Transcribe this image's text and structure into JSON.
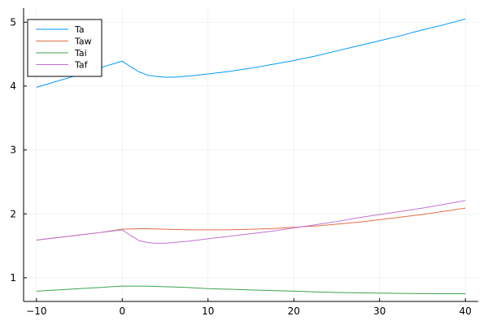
{
  "chart_data": {
    "type": "line",
    "title": "",
    "xlabel": "",
    "ylabel": "",
    "xlim": [
      -11.5,
      41.5
    ],
    "ylim": [
      0.63,
      5.22
    ],
    "xticks": [
      -10,
      0,
      10,
      20,
      30,
      40
    ],
    "yticks": [
      1,
      2,
      3,
      4,
      5
    ],
    "xtick_labels": [
      "−10",
      "0",
      "10",
      "20",
      "30",
      "40"
    ],
    "ytick_labels": [
      "1",
      "2",
      "3",
      "4",
      "5"
    ],
    "grid": true,
    "legend_position": "top-left",
    "series": [
      {
        "name": "Ta",
        "color": "#009AFA",
        "x": [
          -10,
          -7.5,
          -5,
          -2.5,
          0,
          1,
          2,
          3,
          4,
          5,
          6,
          8,
          10,
          12.5,
          15,
          17.5,
          20,
          22.5,
          25,
          27.5,
          30,
          32.5,
          35,
          37.5,
          40
        ],
        "y": [
          3.98,
          4.08,
          4.18,
          4.29,
          4.39,
          4.3,
          4.22,
          4.17,
          4.15,
          4.14,
          4.14,
          4.16,
          4.19,
          4.23,
          4.28,
          4.34,
          4.4,
          4.47,
          4.55,
          4.63,
          4.71,
          4.79,
          4.88,
          4.96,
          5.05
        ]
      },
      {
        "name": "Taw",
        "color": "#E36F47",
        "x": [
          -10,
          -7.5,
          -5,
          -2.5,
          0,
          2.5,
          5,
          7.5,
          10,
          12.5,
          15,
          17.5,
          20,
          22.5,
          25,
          27.5,
          30,
          32.5,
          35,
          37.5,
          40
        ],
        "y": [
          1.59,
          1.63,
          1.67,
          1.71,
          1.76,
          1.77,
          1.76,
          1.75,
          1.75,
          1.75,
          1.76,
          1.77,
          1.79,
          1.81,
          1.84,
          1.87,
          1.91,
          1.95,
          1.99,
          2.04,
          2.09
        ]
      },
      {
        "name": "Tai",
        "color": "#3EA44E",
        "x": [
          -10,
          -7.5,
          -5,
          -2.5,
          0,
          2.5,
          5,
          7.5,
          10,
          12.5,
          15,
          17.5,
          20,
          22.5,
          25,
          27.5,
          30,
          32.5,
          35,
          37.5,
          40
        ],
        "y": [
          0.79,
          0.81,
          0.83,
          0.85,
          0.87,
          0.87,
          0.86,
          0.85,
          0.83,
          0.82,
          0.81,
          0.8,
          0.79,
          0.78,
          0.77,
          0.765,
          0.76,
          0.755,
          0.753,
          0.751,
          0.75
        ]
      },
      {
        "name": "Taf",
        "color": "#C271D2",
        "x": [
          -10,
          -7.5,
          -5,
          -2.5,
          0,
          1,
          2,
          3,
          4,
          5,
          7.5,
          10,
          12.5,
          15,
          17.5,
          20,
          22.5,
          25,
          27.5,
          30,
          32.5,
          35,
          37.5,
          40
        ],
        "y": [
          1.59,
          1.63,
          1.67,
          1.71,
          1.75,
          1.66,
          1.58,
          1.55,
          1.54,
          1.54,
          1.57,
          1.61,
          1.65,
          1.69,
          1.73,
          1.78,
          1.83,
          1.88,
          1.94,
          1.99,
          2.04,
          2.09,
          2.15,
          2.21
        ]
      }
    ]
  }
}
